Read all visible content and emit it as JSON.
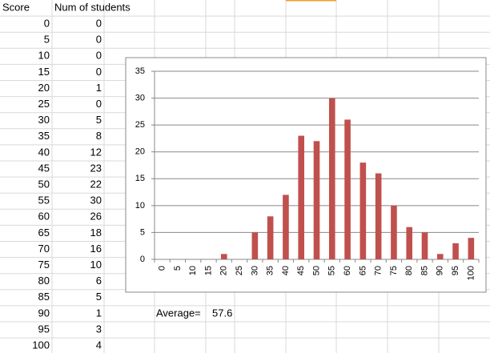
{
  "table": {
    "header": [
      "Score",
      "Num of students"
    ],
    "rows": [
      [
        0,
        0
      ],
      [
        5,
        0
      ],
      [
        10,
        0
      ],
      [
        15,
        0
      ],
      [
        20,
        1
      ],
      [
        25,
        0
      ],
      [
        30,
        5
      ],
      [
        35,
        8
      ],
      [
        40,
        12
      ],
      [
        45,
        23
      ],
      [
        50,
        22
      ],
      [
        55,
        30
      ],
      [
        60,
        26
      ],
      [
        65,
        18
      ],
      [
        70,
        16
      ],
      [
        75,
        10
      ],
      [
        80,
        6
      ],
      [
        85,
        5
      ],
      [
        90,
        1
      ],
      [
        95,
        3
      ],
      [
        100,
        4
      ]
    ]
  },
  "average": {
    "label": "Average=",
    "value": 57.6
  },
  "chart_data": {
    "type": "bar",
    "categories": [
      0,
      5,
      10,
      15,
      20,
      25,
      30,
      35,
      40,
      45,
      50,
      55,
      60,
      65,
      70,
      75,
      80,
      85,
      90,
      95,
      100
    ],
    "values": [
      0,
      0,
      0,
      0,
      1,
      0,
      5,
      8,
      12,
      23,
      22,
      30,
      26,
      18,
      16,
      10,
      6,
      5,
      1,
      3,
      4
    ],
    "color": "#c0504d",
    "ylim": [
      0,
      35
    ],
    "yticks": [
      0,
      5,
      10,
      15,
      20,
      25,
      30,
      35
    ],
    "grid": true
  }
}
